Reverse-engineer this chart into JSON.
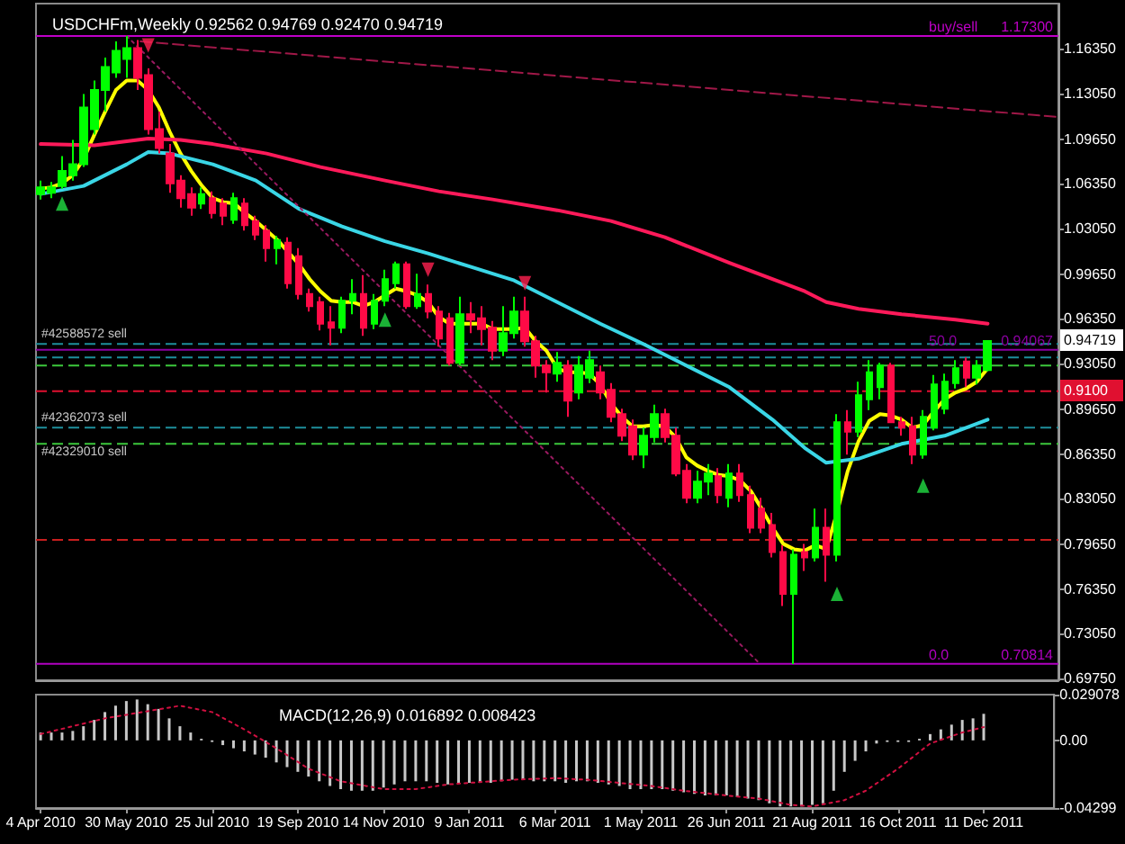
{
  "chart_data": [
    {
      "type": "candlestick",
      "title": "USDCHFm,Weekly 0.92562 0.94769 0.92470 0.94719",
      "x": [
        "2010-04-04",
        "2010-04-11",
        "2010-04-18",
        "2010-04-25",
        "2010-05-02",
        "2010-05-09",
        "2010-05-16",
        "2010-05-23",
        "2010-05-30",
        "2010-06-06",
        "2010-06-13",
        "2010-06-20",
        "2010-06-27",
        "2010-07-04",
        "2010-07-11",
        "2010-07-18",
        "2010-07-25",
        "2010-08-01",
        "2010-08-08",
        "2010-08-15",
        "2010-08-22",
        "2010-08-29",
        "2010-09-05",
        "2010-09-12",
        "2010-09-19",
        "2010-09-26",
        "2010-10-03",
        "2010-10-10",
        "2010-10-17",
        "2010-10-24",
        "2010-10-31",
        "2010-11-07",
        "2010-11-14",
        "2010-11-21",
        "2010-11-28",
        "2010-12-05",
        "2010-12-12",
        "2010-12-19",
        "2010-12-26",
        "2011-01-02",
        "2011-01-09",
        "2011-01-16",
        "2011-01-23",
        "2011-01-30",
        "2011-02-06",
        "2011-02-13",
        "2011-02-20",
        "2011-02-27",
        "2011-03-06",
        "2011-03-13",
        "2011-03-20",
        "2011-03-27",
        "2011-04-03",
        "2011-04-10",
        "2011-04-17",
        "2011-04-24",
        "2011-05-01",
        "2011-05-08",
        "2011-05-15",
        "2011-05-22",
        "2011-05-29",
        "2011-06-05",
        "2011-06-12",
        "2011-06-19",
        "2011-06-26",
        "2011-07-03",
        "2011-07-10",
        "2011-07-17",
        "2011-07-24",
        "2011-07-31",
        "2011-08-07",
        "2011-08-14",
        "2011-08-21",
        "2011-08-28",
        "2011-09-04",
        "2011-09-11",
        "2011-09-18",
        "2011-09-25",
        "2011-10-02",
        "2011-10-09",
        "2011-10-16",
        "2011-10-23",
        "2011-10-30",
        "2011-11-06",
        "2011-11-13",
        "2011-11-20",
        "2011-11-27",
        "2011-12-04",
        "2011-12-11"
      ],
      "ohlc": [
        [
          1.056,
          1.066,
          1.052,
          1.061
        ],
        [
          1.057,
          1.065,
          1.053,
          1.061
        ],
        [
          1.062,
          1.084,
          1.06,
          1.073
        ],
        [
          1.07,
          1.096,
          1.066,
          1.078
        ],
        [
          1.078,
          1.13,
          1.076,
          1.12
        ],
        [
          1.104,
          1.14,
          1.1,
          1.133
        ],
        [
          1.133,
          1.157,
          1.117,
          1.15
        ],
        [
          1.146,
          1.169,
          1.142,
          1.162
        ],
        [
          1.156,
          1.173,
          1.142,
          1.164
        ],
        [
          1.164,
          1.17,
          1.133,
          1.142
        ],
        [
          1.144,
          1.149,
          1.1,
          1.104
        ],
        [
          1.104,
          1.117,
          1.086,
          1.09
        ],
        [
          1.086,
          1.093,
          1.057,
          1.064
        ],
        [
          1.066,
          1.07,
          1.046,
          1.053
        ],
        [
          1.056,
          1.061,
          1.04,
          1.046
        ],
        [
          1.049,
          1.061,
          1.045,
          1.056
        ],
        [
          1.053,
          1.058,
          1.038,
          1.042
        ],
        [
          1.049,
          1.053,
          1.033,
          1.04
        ],
        [
          1.037,
          1.057,
          1.034,
          1.053
        ],
        [
          1.049,
          1.053,
          1.029,
          1.033
        ],
        [
          1.036,
          1.04,
          1.022,
          1.026
        ],
        [
          1.029,
          1.033,
          1.006,
          1.016
        ],
        [
          1.016,
          1.025,
          1.004,
          1.022
        ],
        [
          1.02,
          1.024,
          0.986,
          0.99
        ],
        [
          1.01,
          1.016,
          0.978,
          0.982
        ],
        [
          0.982,
          0.986,
          0.969,
          0.973
        ],
        [
          0.976,
          0.98,
          0.955,
          0.96
        ],
        [
          0.961,
          0.973,
          0.944,
          0.957
        ],
        [
          0.957,
          0.98,
          0.953,
          0.977
        ],
        [
          0.977,
          0.993,
          0.967,
          0.982
        ],
        [
          0.982,
          0.996,
          0.951,
          0.957
        ],
        [
          0.96,
          0.982,
          0.956,
          0.977
        ],
        [
          0.977,
          1.0,
          0.973,
          0.993
        ],
        [
          0.99,
          1.006,
          0.986,
          1.004
        ],
        [
          1.004,
          1.006,
          0.971,
          0.973
        ],
        [
          0.973,
          0.997,
          0.971,
          0.982
        ],
        [
          0.982,
          0.989,
          0.964,
          0.969
        ],
        [
          0.969,
          0.973,
          0.943,
          0.949
        ],
        [
          0.964,
          0.968,
          0.929,
          0.931
        ],
        [
          0.931,
          0.98,
          0.929,
          0.967
        ],
        [
          0.967,
          0.976,
          0.953,
          0.963
        ],
        [
          0.964,
          0.973,
          0.944,
          0.956
        ],
        [
          0.957,
          0.962,
          0.933,
          0.94
        ],
        [
          0.94,
          0.973,
          0.936,
          0.953
        ],
        [
          0.953,
          0.98,
          0.949,
          0.969
        ],
        [
          0.969,
          0.98,
          0.943,
          0.947
        ],
        [
          0.947,
          0.951,
          0.92,
          0.929
        ],
        [
          0.929,
          0.933,
          0.909,
          0.924
        ],
        [
          0.923,
          0.939,
          0.917,
          0.931
        ],
        [
          0.929,
          0.933,
          0.891,
          0.903
        ],
        [
          0.909,
          0.936,
          0.904,
          0.929
        ],
        [
          0.92,
          0.94,
          0.916,
          0.933
        ],
        [
          0.924,
          0.929,
          0.904,
          0.909
        ],
        [
          0.911,
          0.916,
          0.887,
          0.891
        ],
        [
          0.893,
          0.897,
          0.873,
          0.877
        ],
        [
          0.884,
          0.889,
          0.859,
          0.863
        ],
        [
          0.863,
          0.883,
          0.853,
          0.877
        ],
        [
          0.876,
          0.9,
          0.872,
          0.893
        ],
        [
          0.893,
          0.897,
          0.872,
          0.876
        ],
        [
          0.877,
          0.883,
          0.847,
          0.849
        ],
        [
          0.851,
          0.856,
          0.827,
          0.831
        ],
        [
          0.831,
          0.851,
          0.827,
          0.843
        ],
        [
          0.843,
          0.856,
          0.833,
          0.849
        ],
        [
          0.847,
          0.853,
          0.827,
          0.833
        ],
        [
          0.831,
          0.856,
          0.824,
          0.849
        ],
        [
          0.849,
          0.856,
          0.828,
          0.833
        ],
        [
          0.833,
          0.84,
          0.805,
          0.809
        ],
        [
          0.823,
          0.831,
          0.805,
          0.809
        ],
        [
          0.811,
          0.82,
          0.787,
          0.791
        ],
        [
          0.791,
          0.796,
          0.751,
          0.76
        ],
        [
          0.76,
          0.793,
          0.708,
          0.789
        ],
        [
          0.791,
          0.797,
          0.777,
          0.787
        ],
        [
          0.787,
          0.823,
          0.784,
          0.809
        ],
        [
          0.809,
          0.823,
          0.769,
          0.789
        ],
        [
          0.789,
          0.893,
          0.784,
          0.887
        ],
        [
          0.887,
          0.896,
          0.863,
          0.88
        ],
        [
          0.88,
          0.917,
          0.876,
          0.907
        ],
        [
          0.904,
          0.933,
          0.896,
          0.924
        ],
        [
          0.913,
          0.931,
          0.904,
          0.929
        ],
        [
          0.929,
          0.931,
          0.887,
          0.887
        ],
        [
          0.887,
          0.891,
          0.877,
          0.883
        ],
        [
          0.884,
          0.891,
          0.856,
          0.863
        ],
        [
          0.863,
          0.896,
          0.86,
          0.891
        ],
        [
          0.883,
          0.922,
          0.881,
          0.915
        ],
        [
          0.897,
          0.923,
          0.893,
          0.917
        ],
        [
          0.916,
          0.933,
          0.912,
          0.927
        ],
        [
          0.932,
          0.935,
          0.913,
          0.92
        ],
        [
          0.92,
          0.933,
          0.915,
          0.929
        ],
        [
          0.92562,
          0.94769,
          0.9247,
          0.94719
        ]
      ],
      "colors": [
        "#00ff00",
        "#00ff00",
        "#00ff00",
        "#00ff00",
        "#00ff00",
        "#00ff00",
        "#00ff00",
        "#00ff00",
        "#00ff00",
        "#ff0a46",
        "#ff0a46",
        "#ff0a46",
        "#ff0a46",
        "#ff0a46",
        "#ff0a46",
        "#00ff00",
        "#ff0a46",
        "#ff0a46",
        "#00ff00",
        "#ff0a46",
        "#ff0a46",
        "#ff0a46",
        "#00ff00",
        "#ff0a46",
        "#ff0a46",
        "#ff0a46",
        "#ff0a46",
        "#ff0a46",
        "#00ff00",
        "#00ff00",
        "#ff0a46",
        "#00ff00",
        "#00ff00",
        "#00ff00",
        "#ff0a46",
        "#00ff00",
        "#ff0a46",
        "#ff0a46",
        "#ff0a46",
        "#00ff00",
        "#ff0a46",
        "#ff0a46",
        "#ff0a46",
        "#00ff00",
        "#00ff00",
        "#ff0a46",
        "#ff0a46",
        "#ff0a46",
        "#00ff00",
        "#ff0a46",
        "#00ff00",
        "#00ff00",
        "#ff0a46",
        "#ff0a46",
        "#ff0a46",
        "#ff0a46",
        "#00ff00",
        "#00ff00",
        "#ff0a46",
        "#ff0a46",
        "#ff0a46",
        "#00ff00",
        "#00ff00",
        "#ff0a46",
        "#00ff00",
        "#ff0a46",
        "#ff0a46",
        "#ff0a46",
        "#ff0a46",
        "#ff0a46",
        "#00ff00",
        "#ff0a46",
        "#00ff00",
        "#ff0a46",
        "#00ff00",
        "#ff0a46",
        "#00ff00",
        "#00ff00",
        "#00ff00",
        "#ff0a46",
        "#ff0a46",
        "#ff0a46",
        "#00ff00",
        "#00ff00",
        "#00ff00",
        "#00ff00",
        "#ff0a46",
        "#00ff00",
        "#00ff00"
      ],
      "xlim": [
        "2010-04-01",
        "2012-01-26"
      ],
      "ylim": [
        0.696,
        1.197
      ],
      "yticks": [
        {
          "value": 1.1635,
          "label": "1.16350"
        },
        {
          "value": 1.1305,
          "label": "1.13050"
        },
        {
          "value": 1.0965,
          "label": "1.09650"
        },
        {
          "value": 1.0635,
          "label": "1.06350"
        },
        {
          "value": 1.0305,
          "label": "1.03050"
        },
        {
          "value": 0.9965,
          "label": "0.99650"
        },
        {
          "value": 0.9635,
          "label": "0.96350"
        },
        {
          "value": 0.9305,
          "label": "0.93050"
        },
        {
          "value": 0.8965,
          "label": "0.89650"
        },
        {
          "value": 0.8635,
          "label": "0.86350"
        },
        {
          "value": 0.8305,
          "label": "0.83050"
        },
        {
          "value": 0.7965,
          "label": "0.79650"
        },
        {
          "value": 0.7635,
          "label": "0.76350"
        },
        {
          "value": 0.7305,
          "label": "0.73050"
        },
        {
          "value": 0.6975,
          "label": "0.69750"
        }
      ],
      "tick_labels": "y",
      "series": [
        {
          "type": "line",
          "color": "#ffff00",
          "values": [
            1.06,
            1.061,
            1.064,
            1.07,
            1.082,
            1.1,
            1.117,
            1.133,
            1.14,
            1.14,
            1.133,
            1.12,
            1.102,
            1.086,
            1.073,
            1.062,
            1.053,
            1.05,
            1.049,
            1.042,
            1.036,
            1.029,
            1.022,
            1.013,
            1.004,
            0.993,
            0.984,
            0.977,
            0.976,
            0.976,
            0.973,
            0.976,
            0.981,
            0.986,
            0.984,
            0.981,
            0.976,
            0.965,
            0.96,
            0.96,
            0.96,
            0.96,
            0.956,
            0.956,
            0.956,
            0.957,
            0.947,
            0.94,
            0.927,
            0.924,
            0.924,
            0.923,
            0.915,
            0.901,
            0.891,
            0.884,
            0.884,
            0.885,
            0.884,
            0.876,
            0.861,
            0.855,
            0.851,
            0.848,
            0.847,
            0.844,
            0.836,
            0.823,
            0.809,
            0.797,
            0.793,
            0.792,
            0.796,
            0.793,
            0.82,
            0.851,
            0.873,
            0.888,
            0.893,
            0.892,
            0.889,
            0.883,
            0.885,
            0.895,
            0.904,
            0.909,
            0.912,
            0.917,
            0.927
          ]
        },
        {
          "type": "line",
          "color": "#3ad6e6",
          "x": [
            "2010-04-04",
            "2010-05-02",
            "2010-05-30",
            "2010-06-13",
            "2010-06-27",
            "2010-07-25",
            "2010-08-22",
            "2010-09-19",
            "2010-10-17",
            "2010-11-14",
            "2010-12-12",
            "2011-01-09",
            "2011-02-06",
            "2011-03-06",
            "2011-04-03",
            "2011-05-01",
            "2011-05-29",
            "2011-06-26",
            "2011-07-24",
            "2011-08-14",
            "2011-08-28",
            "2011-09-18",
            "2011-10-16",
            "2011-11-13",
            "2011-12-11"
          ],
          "values": [
            1.056,
            1.062,
            1.078,
            1.087,
            1.086,
            1.078,
            1.066,
            1.045,
            1.032,
            1.021,
            1.012,
            1.002,
            0.992,
            0.976,
            0.96,
            0.945,
            0.929,
            0.913,
            0.889,
            0.868,
            0.857,
            0.86,
            0.871,
            0.877,
            0.889
          ]
        },
        {
          "type": "line",
          "color": "#ff1a5a",
          "x": [
            "2010-04-04",
            "2010-05-09",
            "2010-06-13",
            "2010-07-04",
            "2010-07-25",
            "2010-08-29",
            "2010-10-03",
            "2010-11-14",
            "2010-12-19",
            "2011-01-23",
            "2011-03-06",
            "2011-04-10",
            "2011-05-15",
            "2011-06-26",
            "2011-07-31",
            "2011-08-14",
            "2011-08-28",
            "2011-09-18",
            "2011-10-16",
            "2011-11-20",
            "2011-12-11"
          ],
          "values": [
            1.093,
            1.092,
            1.097,
            1.096,
            1.093,
            1.086,
            1.076,
            1.066,
            1.058,
            1.052,
            1.044,
            1.036,
            1.024,
            1.005,
            0.99,
            0.984,
            0.976,
            0.971,
            0.967,
            0.963,
            0.96
          ]
        },
        {
          "type": "line",
          "color": "#a01848",
          "line_style": "dashed",
          "x": [
            "2010-06-08",
            "2012-01-26"
          ],
          "values": [
            1.169,
            1.113
          ]
        },
        {
          "type": "line",
          "color": "#9a1a60",
          "line_style": "dotted",
          "x": [
            "2010-05-30",
            "2011-07-16"
          ],
          "values": [
            1.173,
            0.708
          ]
        },
        {
          "type": "scatter",
          "color": "#22dd44",
          "marker": "triangle",
          "x": [
            "2010-04-18",
            "2010-11-14",
            "2011-09-04",
            "2011-10-30"
          ],
          "values": [
            1.049,
            0.963,
            0.76,
            0.84
          ]
        },
        {
          "type": "scatter",
          "color": "#ff2050",
          "marker": "triangle",
          "x": [
            "2010-06-13",
            "2010-12-12",
            "2011-02-13"
          ],
          "values": [
            1.166,
            1.0,
            0.99
          ]
        }
      ],
      "ref_lines": [
        {
          "axis": "y",
          "value": 1.173,
          "label": "1.17300",
          "color": "#c000c8",
          "line_style": "solid"
        },
        {
          "axis": "y",
          "value": 0.945,
          "label": "#42588572 sell",
          "color": "#1e8f9c",
          "line_style": "dashed"
        },
        {
          "axis": "y",
          "value": 0.94067,
          "label": "0.94067",
          "color": "#8a00a0",
          "line_style": "solid"
        },
        {
          "axis": "y",
          "value": 0.935,
          "color": "#1e8f9c",
          "line_style": "dashed"
        },
        {
          "axis": "y",
          "value": 0.929,
          "color": "#3cc83c",
          "line_style": "dashed"
        },
        {
          "axis": "y",
          "value": 0.91,
          "label": "0.9100",
          "color": "#e01030",
          "line_style": "dashed"
        },
        {
          "axis": "y",
          "value": 0.883,
          "label": "#42362073 sell",
          "color": "#1e8f9c",
          "line_style": "dashed"
        },
        {
          "axis": "y",
          "value": 0.871,
          "label": "#42329010 sell",
          "color": "#3cc83c",
          "line_style": "dashed"
        },
        {
          "axis": "y",
          "value": 0.8,
          "color": "#c81e1e",
          "line_style": "dashed"
        },
        {
          "axis": "y",
          "value": 0.70814,
          "label": "0.70814",
          "color": "#b000c0",
          "line_style": "solid"
        }
      ],
      "annotations": [
        "buy/sell",
        "50.0",
        "0.0",
        "0.94719"
      ]
    },
    {
      "type": "bar",
      "title": "MACD(12,26,9) 0.016892 0.008423",
      "x": [
        "2010-04-04",
        "2010-04-11",
        "2010-04-18",
        "2010-04-25",
        "2010-05-02",
        "2010-05-09",
        "2010-05-16",
        "2010-05-23",
        "2010-05-30",
        "2010-06-06",
        "2010-06-13",
        "2010-06-20",
        "2010-06-27",
        "2010-07-04",
        "2010-07-11",
        "2010-07-18",
        "2010-07-25",
        "2010-08-01",
        "2010-08-08",
        "2010-08-15",
        "2010-08-22",
        "2010-08-29",
        "2010-09-05",
        "2010-09-12",
        "2010-09-19",
        "2010-09-26",
        "2010-10-03",
        "2010-10-10",
        "2010-10-17",
        "2010-10-24",
        "2010-10-31",
        "2010-11-07",
        "2010-11-14",
        "2010-11-21",
        "2010-11-28",
        "2010-12-05",
        "2010-12-12",
        "2010-12-19",
        "2010-12-26",
        "2011-01-02",
        "2011-01-09",
        "2011-01-16",
        "2011-01-23",
        "2011-01-30",
        "2011-02-06",
        "2011-02-13",
        "2011-02-20",
        "2011-02-27",
        "2011-03-06",
        "2011-03-13",
        "2011-03-20",
        "2011-03-27",
        "2011-04-03",
        "2011-04-10",
        "2011-04-17",
        "2011-04-24",
        "2011-05-01",
        "2011-05-08",
        "2011-05-15",
        "2011-05-22",
        "2011-05-29",
        "2011-06-05",
        "2011-06-12",
        "2011-06-19",
        "2011-06-26",
        "2011-07-03",
        "2011-07-10",
        "2011-07-17",
        "2011-07-24",
        "2011-07-31",
        "2011-08-07",
        "2011-08-14",
        "2011-08-21",
        "2011-08-28",
        "2011-09-04",
        "2011-09-11",
        "2011-09-18",
        "2011-09-25",
        "2011-10-02",
        "2011-10-09",
        "2011-10-16",
        "2011-10-23",
        "2011-10-30",
        "2011-11-06",
        "2011-11-13",
        "2011-11-20",
        "2011-11-27",
        "2011-12-04",
        "2011-12-11"
      ],
      "xlim": [
        "2010-04-01",
        "2012-01-26"
      ],
      "xticks": [
        {
          "value": "2010-04-04",
          "label": "4 Apr 2010"
        },
        {
          "value": "2010-05-30",
          "label": "30 May 2010"
        },
        {
          "value": "2010-07-25",
          "label": "25 Jul 2010"
        },
        {
          "value": "2010-09-19",
          "label": "19 Sep 2010"
        },
        {
          "value": "2010-11-14",
          "label": "14 Nov 2010"
        },
        {
          "value": "2011-01-09",
          "label": "9 Jan 2011"
        },
        {
          "value": "2011-03-06",
          "label": "6 Mar 2011"
        },
        {
          "value": "2011-05-01",
          "label": "1 May 2011"
        },
        {
          "value": "2011-06-26",
          "label": "26 Jun 2011"
        },
        {
          "value": "2011-08-21",
          "label": "21 Aug 2011"
        },
        {
          "value": "2011-10-16",
          "label": "16 Oct 2011"
        },
        {
          "value": "2011-12-11",
          "label": "11 Dec 2011"
        }
      ],
      "ylim": [
        -0.04299,
        0.029078
      ],
      "yticks": [
        0.029078,
        {
          "value": 0,
          "label": "0.00"
        },
        -0.04299
      ],
      "series": [
        {
          "type": "bar",
          "color": "#c8c8c8",
          "values": [
            0.005,
            0.005,
            0.005,
            0.006,
            0.009,
            0.013,
            0.018,
            0.022,
            0.025,
            0.026,
            0.023,
            0.02,
            0.014,
            0.009,
            0.005,
            0.001,
            -0.001,
            -0.003,
            -0.005,
            -0.007,
            -0.009,
            -0.011,
            -0.014,
            -0.017,
            -0.02,
            -0.023,
            -0.026,
            -0.029,
            -0.031,
            -0.032,
            -0.032,
            -0.032,
            -0.03,
            -0.028,
            -0.026,
            -0.026,
            -0.026,
            -0.027,
            -0.028,
            -0.027,
            -0.027,
            -0.027,
            -0.027,
            -0.026,
            -0.025,
            -0.025,
            -0.026,
            -0.026,
            -0.026,
            -0.027,
            -0.026,
            -0.026,
            -0.027,
            -0.028,
            -0.029,
            -0.031,
            -0.031,
            -0.031,
            -0.031,
            -0.032,
            -0.033,
            -0.034,
            -0.035,
            -0.035,
            -0.035,
            -0.036,
            -0.037,
            -0.038,
            -0.04,
            -0.042,
            -0.042,
            -0.042,
            -0.041,
            -0.04,
            -0.032,
            -0.02,
            -0.013,
            -0.007,
            -0.002,
            -0.001,
            -0.001,
            -0.001,
            0.001,
            0.004,
            0.007,
            0.01,
            0.013,
            0.014,
            0.016892
          ]
        },
        {
          "type": "line",
          "color": "#d01040",
          "line_style": "dotted",
          "x": [
            "2010-04-04",
            "2010-05-16",
            "2010-07-04",
            "2010-07-25",
            "2010-08-15",
            "2010-09-05",
            "2010-09-26",
            "2010-10-17",
            "2010-11-14",
            "2010-12-05",
            "2010-12-26",
            "2011-02-06",
            "2011-03-06",
            "2011-03-27",
            "2011-04-17",
            "2011-05-08",
            "2011-05-29",
            "2011-06-26",
            "2011-07-17",
            "2011-08-07",
            "2011-08-21",
            "2011-09-11",
            "2011-09-25",
            "2011-10-16",
            "2011-11-06",
            "2011-11-27",
            "2011-12-11"
          ],
          "values": [
            0.004,
            0.014,
            0.022,
            0.018,
            0.007,
            -0.005,
            -0.018,
            -0.026,
            -0.031,
            -0.031,
            -0.028,
            -0.025,
            -0.024,
            -0.025,
            -0.027,
            -0.029,
            -0.032,
            -0.035,
            -0.037,
            -0.041,
            -0.042,
            -0.038,
            -0.032,
            -0.018,
            -0.002,
            0.005,
            0.008423
          ]
        }
      ]
    }
  ]
}
